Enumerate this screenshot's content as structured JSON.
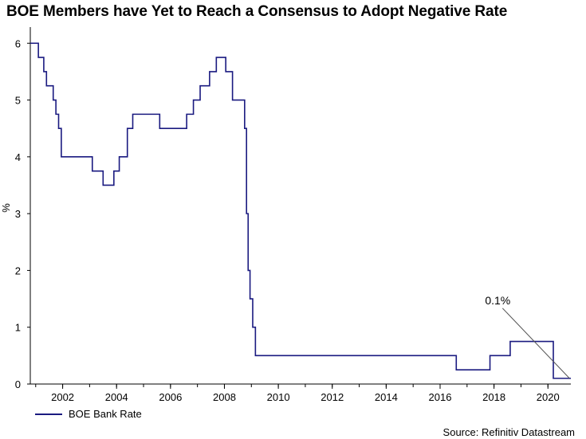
{
  "title": "BOE Members have Yet to Reach a Consensus to Adopt Negative Rate",
  "source": "Source: Refinitiv Datastream",
  "colors": {
    "series": "#1a1a80",
    "axis": "#000000",
    "annotation": "#555555"
  },
  "chart_data": {
    "type": "line",
    "title": "BOE Members have Yet to Reach a Consensus to Adopt Negative Rate",
    "xlabel": "",
    "ylabel": "%",
    "xlim": [
      2000.8,
      2020.85
    ],
    "ylim": [
      0,
      6.2
    ],
    "x_ticks": [
      2002,
      2004,
      2006,
      2008,
      2010,
      2012,
      2014,
      2016,
      2018,
      2020
    ],
    "x_tick_labels": [
      "2002",
      "2004",
      "2006",
      "2008",
      "2010",
      "2012",
      "2014",
      "2016",
      "2018",
      "2020"
    ],
    "y_ticks": [
      0,
      1,
      2,
      3,
      4,
      5,
      6
    ],
    "y_tick_labels": [
      "0",
      "1",
      "2",
      "3",
      "4",
      "5",
      "6"
    ],
    "grid": false,
    "legend_position": "bottom-left",
    "series": [
      {
        "name": "BOE Bank Rate",
        "step": true,
        "x": [
          2000.8,
          2001.1,
          2001.3,
          2001.4,
          2001.65,
          2001.75,
          2001.85,
          2001.95,
          2003.1,
          2003.5,
          2003.9,
          2004.1,
          2004.4,
          2004.6,
          2005.6,
          2006.6,
          2006.85,
          2007.1,
          2007.45,
          2007.7,
          2008.05,
          2008.3,
          2008.75,
          2008.82,
          2008.88,
          2008.95,
          2009.05,
          2009.15,
          2016.6,
          2017.85,
          2018.6,
          2020.2,
          2020.85
        ],
        "y": [
          6.0,
          5.75,
          5.5,
          5.25,
          5.0,
          4.75,
          4.5,
          4.0,
          3.75,
          3.5,
          3.75,
          4.0,
          4.5,
          4.75,
          4.5,
          4.75,
          5.0,
          5.25,
          5.5,
          5.75,
          5.5,
          5.0,
          4.5,
          3.0,
          2.0,
          1.5,
          1.0,
          0.5,
          0.25,
          0.5,
          0.75,
          0.1,
          0.1
        ]
      }
    ],
    "annotations": [
      {
        "text": "0.1%",
        "x": 2020.8,
        "y": 0.1
      }
    ]
  }
}
